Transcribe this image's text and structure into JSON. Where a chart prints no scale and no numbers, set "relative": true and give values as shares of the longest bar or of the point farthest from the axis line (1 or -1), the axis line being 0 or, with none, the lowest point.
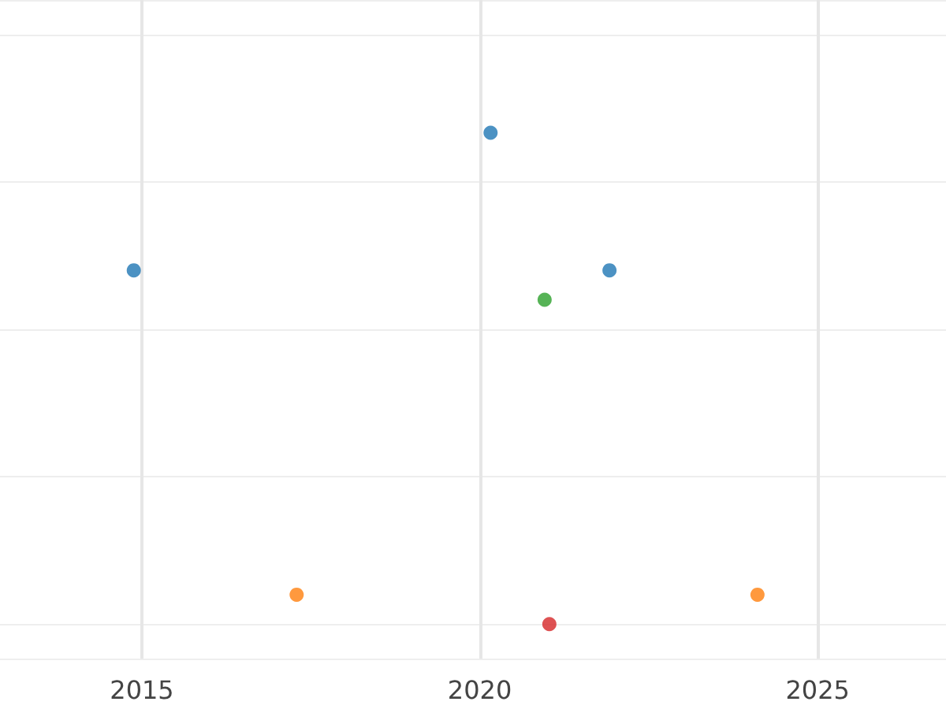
{
  "chart_data": {
    "type": "scatter",
    "relative": true,
    "xlim": [
      2012.9,
      2026.9
    ],
    "xticks": [
      2015,
      2020,
      2025
    ],
    "grid": true,
    "marker": "circle",
    "tick_labels": "x",
    "series": [
      {
        "color": "#1f77b4",
        "x": [
          2014.88,
          2020.16,
          2021.92
        ],
        "values": [
          0.72,
          1,
          0.72
        ]
      },
      {
        "color": "#ff7f0e",
        "x": [
          2017.29,
          2024.11
        ],
        "values": [
          0.06,
          0.06
        ]
      },
      {
        "color": "#2ca02c",
        "x": [
          2020.96
        ],
        "values": [
          0.66
        ]
      },
      {
        "color": "#d62728",
        "x": [
          2021.03
        ],
        "values": [
          0
        ]
      }
    ]
  }
}
